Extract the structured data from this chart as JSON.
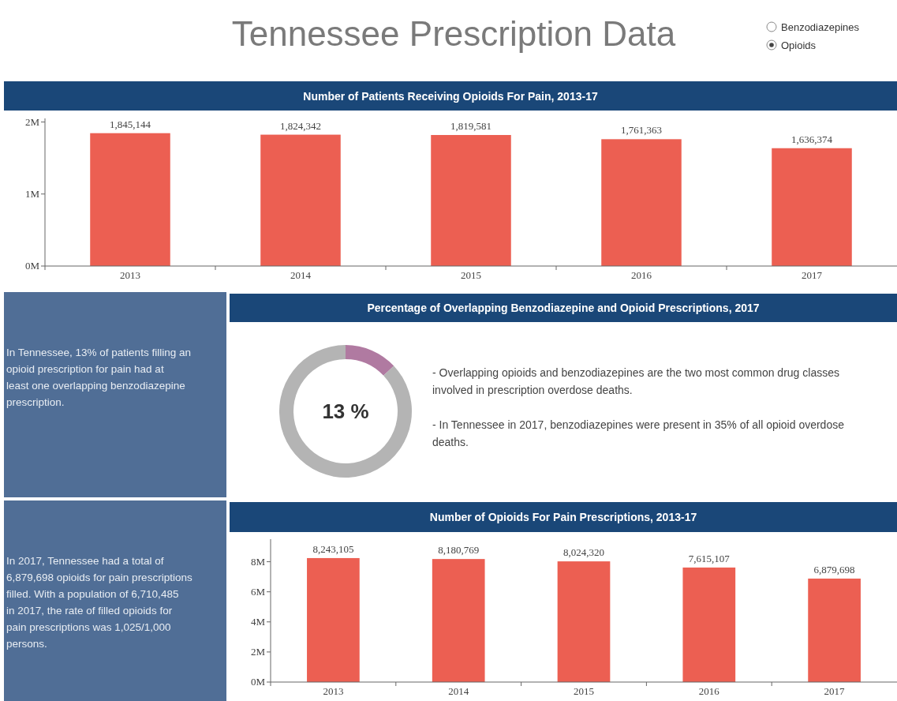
{
  "chart_data": [
    {
      "type": "other",
      "title": "Tennessee Prescription Data",
      "annotations": [
        "Benzodiazepines",
        "Opioids"
      ]
    },
    {
      "type": "bar",
      "title": "Number of Patients Receiving Opioids For Pain, 2013-17",
      "categories": [
        "2013",
        "2014",
        "2015",
        "2016",
        "2017"
      ],
      "values": [
        1845144,
        1824342,
        1819581,
        1761363,
        1636374
      ],
      "value_labels": [
        "1,845,144",
        "1,824,342",
        "1,819,581",
        "1,761,363",
        "1,636,374"
      ],
      "color": "#ec5f52",
      "ylim": [
        0,
        2050000
      ],
      "yticks": [
        {
          "value": 0,
          "label": "0M"
        },
        {
          "value": 1000000,
          "label": "1M"
        },
        {
          "value": 2000000,
          "label": "2M"
        }
      ]
    },
    {
      "type": "other",
      "annotations": [
        "In Tennessee, 13% of patients filling an opioid prescription for pain had at least one overlapping benzodiazepine prescription."
      ]
    },
    {
      "type": "donut",
      "title": "Percentage of Overlapping Benzodiazepine and Opioid Prescriptions, 2017",
      "categories": [
        null,
        null
      ],
      "values": [
        13,
        87
      ],
      "colors": [
        "#b07aa1",
        "#b4b4b4"
      ],
      "annotations": [
        "13 %",
        "- Overlapping opioids and benzodiazepines are the two most common drug classes involved in prescription overdose deaths.",
        "- In Tennessee in 2017, benzodiazepines were present in 35% of all opioid overdose deaths."
      ]
    },
    {
      "type": "other",
      "annotations": [
        "In 2017, Tennessee had a total of 6,879,698 opioids for pain prescriptions filled. With a population of 6,710,485 in 2017, the rate of filled opioids for pain prescriptions was 1,025/1,000 persons."
      ]
    },
    {
      "type": "bar",
      "title": "Number of Opioids For Pain Prescriptions, 2013-17",
      "categories": [
        "2013",
        "2014",
        "2015",
        "2016",
        "2017"
      ],
      "values": [
        8243105,
        8180769,
        8024320,
        7615107,
        6879698
      ],
      "value_labels": [
        "8,243,105",
        "8,180,769",
        "8,024,320",
        "7,615,107",
        "6,879,698"
      ],
      "color": "#ec5f52",
      "ylim": [
        0,
        9500000
      ],
      "yticks": [
        {
          "value": 0,
          "label": "0M"
        },
        {
          "value": 2000000,
          "label": "2M"
        },
        {
          "value": 4000000,
          "label": "4M"
        },
        {
          "value": 6000000,
          "label": "6M"
        },
        {
          "value": 8000000,
          "label": "8M"
        }
      ]
    }
  ]
}
